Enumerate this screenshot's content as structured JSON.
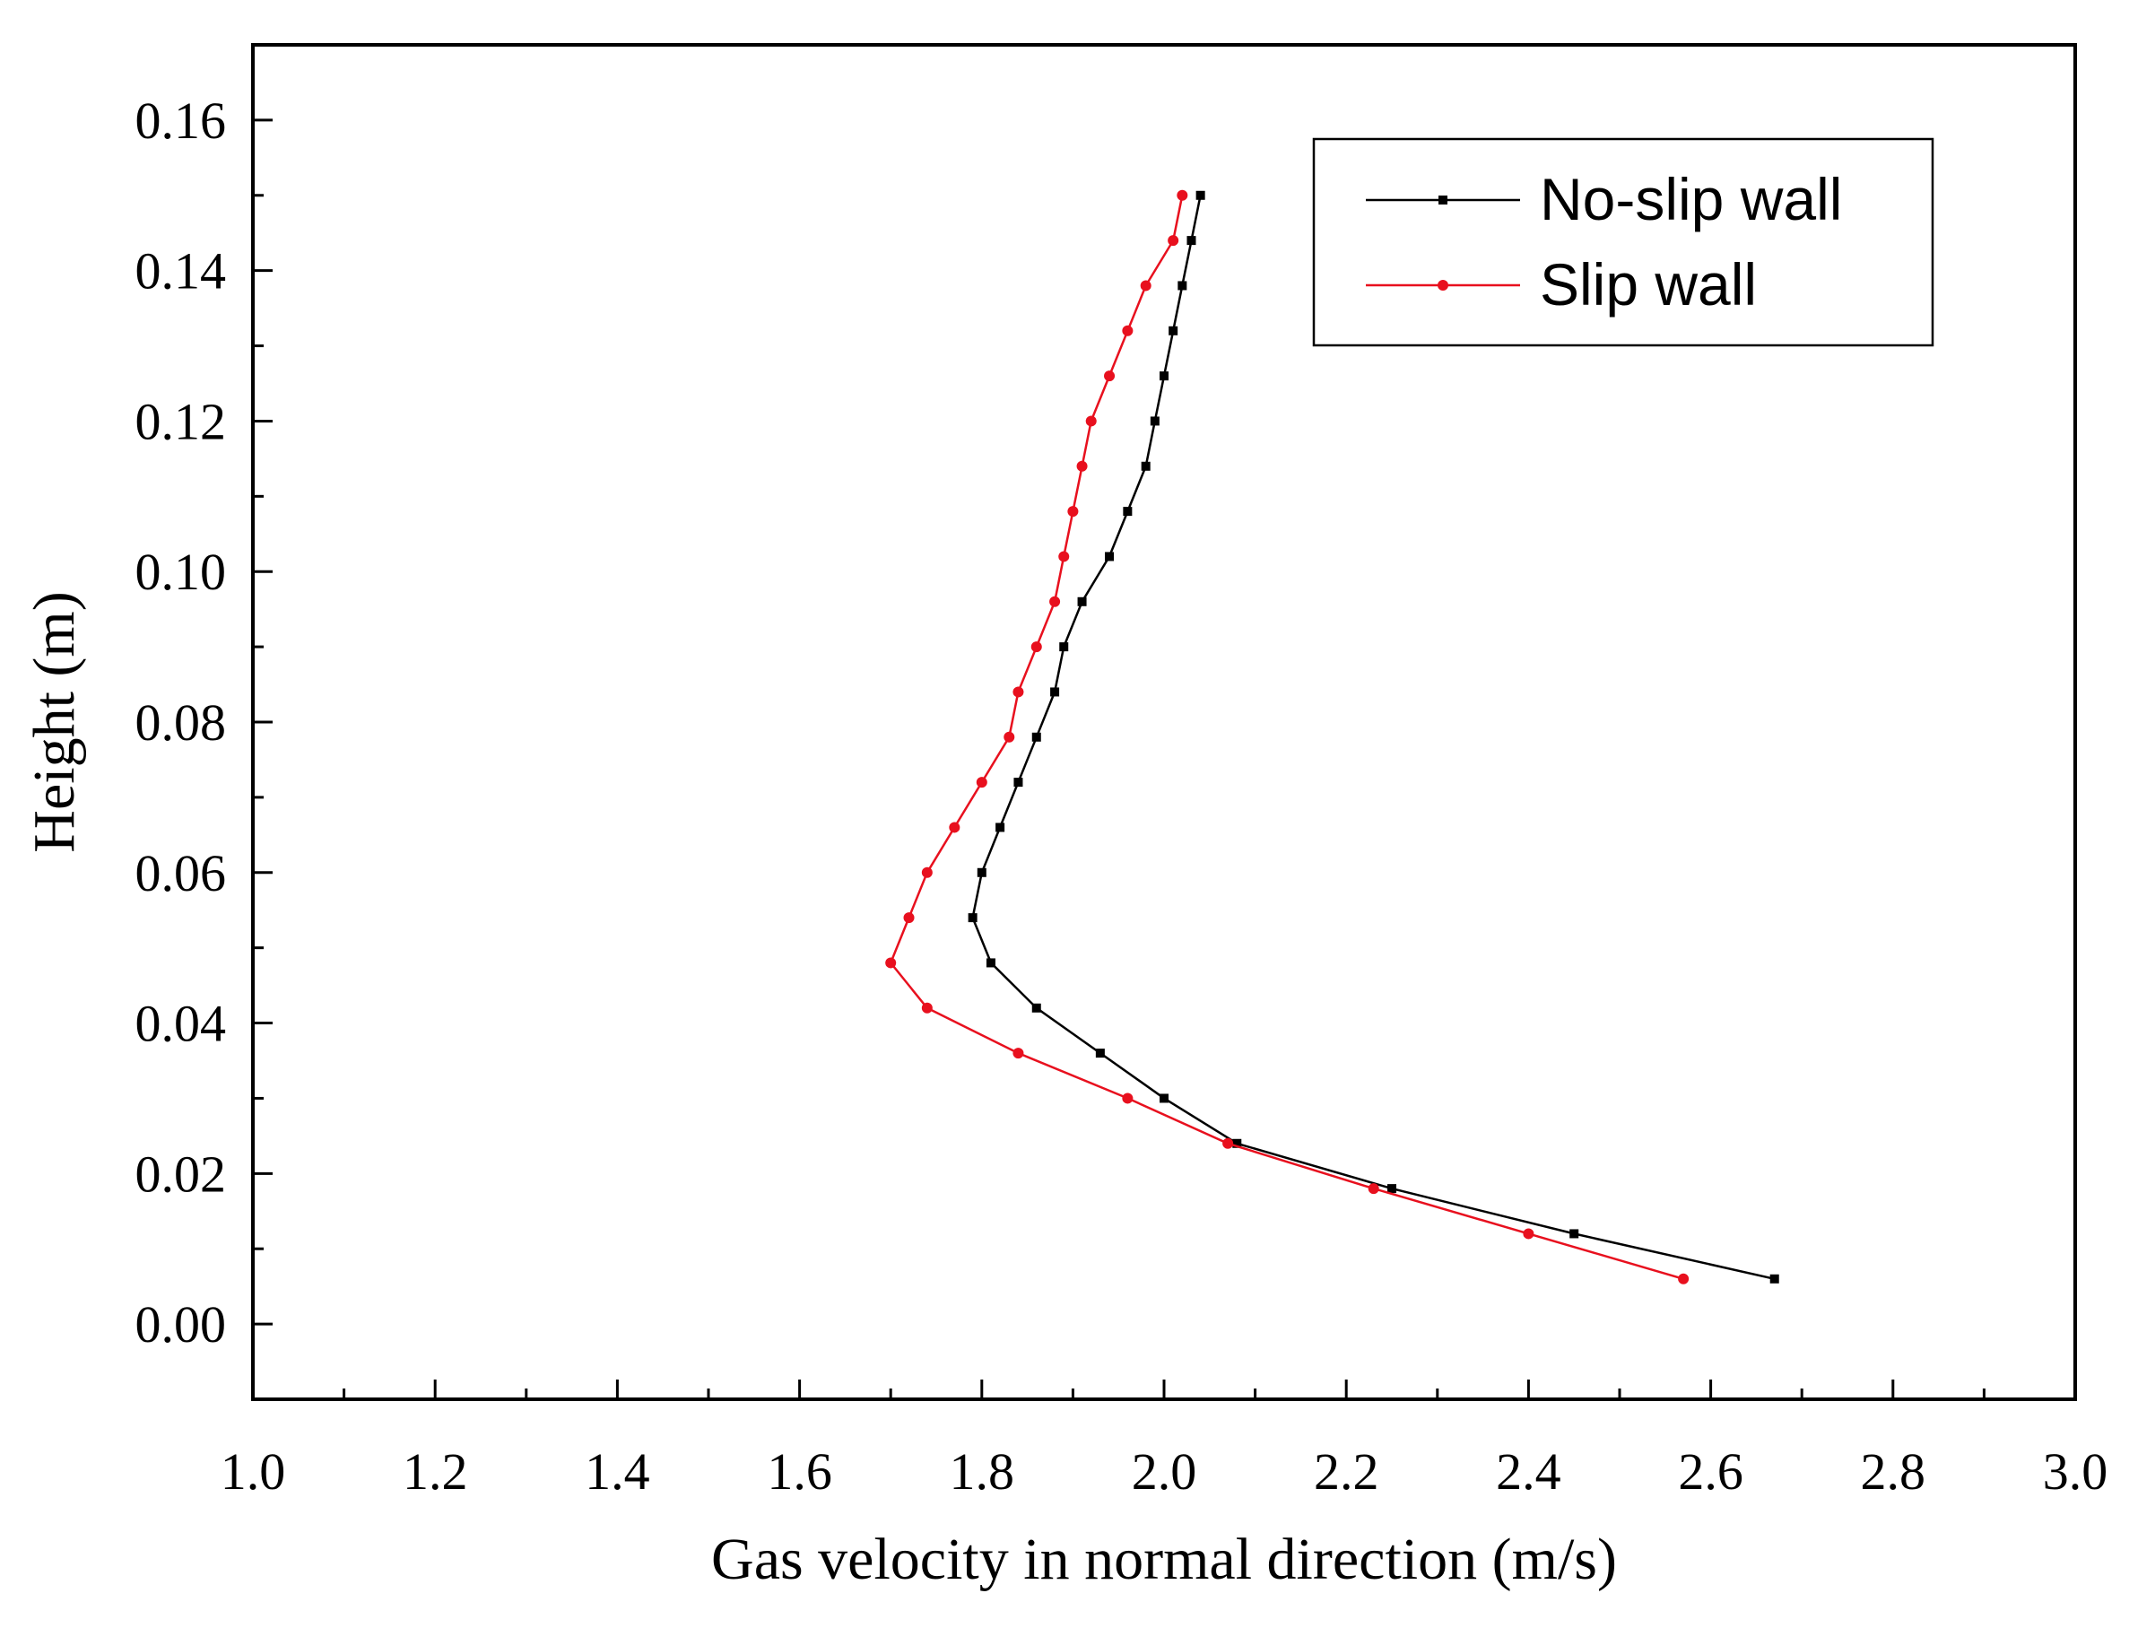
{
  "chart_data": {
    "type": "line",
    "title": "",
    "xlabel": "Gas velocity in normal direction (m/s)",
    "ylabel": "Height (m)",
    "xlim": [
      1.0,
      3.0
    ],
    "ylim": [
      -0.01,
      0.17
    ],
    "x_ticks": [
      "1.0",
      "1.2",
      "1.4",
      "1.6",
      "1.8",
      "2.0",
      "2.2",
      "2.4",
      "2.6",
      "2.8",
      "3.0"
    ],
    "y_ticks": [
      "0.00",
      "0.02",
      "0.04",
      "0.06",
      "0.08",
      "0.10",
      "0.12",
      "0.14",
      "0.16"
    ],
    "x_tick_values": [
      1.0,
      1.2,
      1.4,
      1.6,
      1.8,
      2.0,
      2.2,
      2.4,
      2.6,
      2.8,
      3.0
    ],
    "y_tick_values": [
      0.0,
      0.02,
      0.04,
      0.06,
      0.08,
      0.1,
      0.12,
      0.14,
      0.16
    ],
    "grid": false,
    "legend_position": "top-right",
    "series": [
      {
        "name": "No-slip wall",
        "color": "#000000",
        "marker": "square",
        "points": [
          {
            "x": 2.67,
            "y": 0.006
          },
          {
            "x": 2.45,
            "y": 0.012
          },
          {
            "x": 2.25,
            "y": 0.018
          },
          {
            "x": 2.08,
            "y": 0.024
          },
          {
            "x": 2.0,
            "y": 0.03
          },
          {
            "x": 1.93,
            "y": 0.036
          },
          {
            "x": 1.86,
            "y": 0.042
          },
          {
            "x": 1.81,
            "y": 0.048
          },
          {
            "x": 1.79,
            "y": 0.054
          },
          {
            "x": 1.8,
            "y": 0.06
          },
          {
            "x": 1.82,
            "y": 0.066
          },
          {
            "x": 1.84,
            "y": 0.072
          },
          {
            "x": 1.86,
            "y": 0.078
          },
          {
            "x": 1.88,
            "y": 0.084
          },
          {
            "x": 1.89,
            "y": 0.09
          },
          {
            "x": 1.91,
            "y": 0.096
          },
          {
            "x": 1.94,
            "y": 0.102
          },
          {
            "x": 1.96,
            "y": 0.108
          },
          {
            "x": 1.98,
            "y": 0.114
          },
          {
            "x": 1.99,
            "y": 0.12
          },
          {
            "x": 2.0,
            "y": 0.126
          },
          {
            "x": 2.01,
            "y": 0.132
          },
          {
            "x": 2.02,
            "y": 0.138
          },
          {
            "x": 2.03,
            "y": 0.144
          },
          {
            "x": 2.04,
            "y": 0.15
          }
        ]
      },
      {
        "name": "Slip wall",
        "color": "#e8101e",
        "marker": "circle",
        "points": [
          {
            "x": 2.57,
            "y": 0.006
          },
          {
            "x": 2.4,
            "y": 0.012
          },
          {
            "x": 2.23,
            "y": 0.018
          },
          {
            "x": 2.07,
            "y": 0.024
          },
          {
            "x": 1.96,
            "y": 0.03
          },
          {
            "x": 1.84,
            "y": 0.036
          },
          {
            "x": 1.74,
            "y": 0.042
          },
          {
            "x": 1.7,
            "y": 0.048
          },
          {
            "x": 1.72,
            "y": 0.054
          },
          {
            "x": 1.74,
            "y": 0.06
          },
          {
            "x": 1.77,
            "y": 0.066
          },
          {
            "x": 1.8,
            "y": 0.072
          },
          {
            "x": 1.83,
            "y": 0.078
          },
          {
            "x": 1.84,
            "y": 0.084
          },
          {
            "x": 1.86,
            "y": 0.09
          },
          {
            "x": 1.88,
            "y": 0.096
          },
          {
            "x": 1.89,
            "y": 0.102
          },
          {
            "x": 1.9,
            "y": 0.108
          },
          {
            "x": 1.91,
            "y": 0.114
          },
          {
            "x": 1.92,
            "y": 0.12
          },
          {
            "x": 1.94,
            "y": 0.126
          },
          {
            "x": 1.96,
            "y": 0.132
          },
          {
            "x": 1.98,
            "y": 0.138
          },
          {
            "x": 2.01,
            "y": 0.144
          },
          {
            "x": 2.02,
            "y": 0.15
          }
        ]
      }
    ]
  }
}
